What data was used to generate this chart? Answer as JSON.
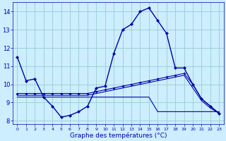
{
  "hours": [
    0,
    1,
    2,
    3,
    4,
    5,
    6,
    7,
    8,
    9,
    10,
    11,
    12,
    13,
    14,
    15,
    16,
    17,
    18,
    19,
    20,
    21,
    22,
    23
  ],
  "temp": [
    11.5,
    10.2,
    10.3,
    9.3,
    8.8,
    8.2,
    8.3,
    8.5,
    8.8,
    9.8,
    9.9,
    11.7,
    13.0,
    13.3,
    14.0,
    14.2,
    13.5,
    12.8,
    10.9,
    10.9,
    10.0,
    9.2,
    8.8,
    8.4
  ],
  "tmax": [
    9.5,
    9.5,
    9.5,
    9.5,
    9.5,
    9.5,
    9.5,
    9.5,
    9.5,
    9.6,
    9.7,
    9.8,
    9.9,
    10.0,
    10.1,
    10.2,
    10.3,
    10.4,
    10.5,
    10.6,
    10.0,
    9.2,
    8.8,
    8.4
  ],
  "tmoy": [
    9.4,
    9.4,
    9.4,
    9.4,
    9.4,
    9.4,
    9.4,
    9.4,
    9.4,
    9.5,
    9.6,
    9.7,
    9.8,
    9.9,
    10.0,
    10.1,
    10.2,
    10.3,
    10.4,
    10.5,
    9.8,
    9.1,
    8.7,
    8.4
  ],
  "tmin": [
    9.3,
    9.3,
    9.3,
    9.3,
    9.3,
    9.3,
    9.3,
    9.3,
    9.3,
    9.3,
    9.3,
    9.3,
    9.3,
    9.3,
    9.3,
    9.3,
    8.5,
    8.5,
    8.5,
    8.5,
    8.5,
    8.5,
    8.5,
    8.5
  ],
  "line_color": "#0000aa",
  "bg_color": "#cceeff",
  "grid_color": "#99cccc",
  "xlabel": "Graphe des températures (°C)",
  "ylim": [
    7.8,
    14.5
  ],
  "xlim": [
    -0.5,
    23.5
  ],
  "yticks": [
    8,
    9,
    10,
    11,
    12,
    13,
    14
  ],
  "xticks": [
    0,
    1,
    2,
    3,
    4,
    5,
    6,
    7,
    8,
    9,
    10,
    11,
    12,
    13,
    14,
    15,
    16,
    17,
    18,
    19,
    20,
    21,
    22,
    23
  ]
}
